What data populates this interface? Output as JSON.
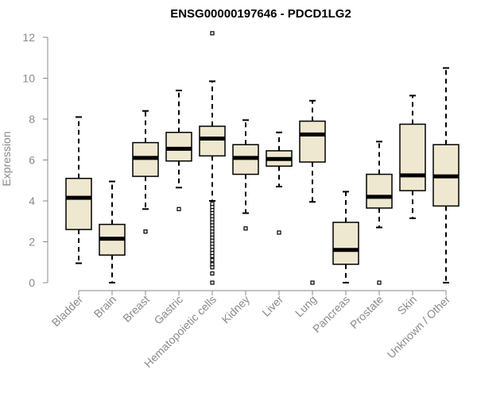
{
  "chart_data": {
    "type": "boxplot",
    "title": "ENSG00000197646 - PDCD1LG2",
    "xlabel": "",
    "ylabel": "Expression",
    "ylim": [
      0,
      12
    ],
    "yticks": [
      0,
      2,
      4,
      6,
      8,
      10,
      12
    ],
    "colors": {
      "box_fill": "#efe8d0",
      "axis": "#8a8a8a",
      "median": "#000000"
    },
    "categories": [
      "Bladder",
      "Brain",
      "Breast",
      "Gastric",
      "Hematopoietic cells",
      "Kidney",
      "Liver",
      "Lung",
      "Pancreas",
      "Prostate",
      "Skin",
      "Unknown / Other"
    ],
    "boxes": [
      {
        "name": "Bladder",
        "whisker_low": 0.95,
        "q1": 2.6,
        "median": 4.15,
        "q3": 5.1,
        "whisker_high": 8.1,
        "outliers": []
      },
      {
        "name": "Brain",
        "whisker_low": 0.0,
        "q1": 1.35,
        "median": 2.15,
        "q3": 2.85,
        "whisker_high": 4.95,
        "outliers": []
      },
      {
        "name": "Breast",
        "whisker_low": 3.6,
        "q1": 5.2,
        "median": 6.1,
        "q3": 6.85,
        "whisker_high": 8.4,
        "outliers": [
          2.5
        ]
      },
      {
        "name": "Gastric",
        "whisker_low": 4.65,
        "q1": 5.95,
        "median": 6.55,
        "q3": 7.35,
        "whisker_high": 9.4,
        "outliers": [
          3.6
        ]
      },
      {
        "name": "Hematopoietic cells",
        "whisker_low": 4.0,
        "q1": 6.2,
        "median": 7.05,
        "q3": 7.65,
        "whisker_high": 9.85,
        "outliers": [
          12.2,
          3.85,
          3.7,
          3.55,
          3.4,
          3.25,
          3.1,
          2.95,
          2.8,
          2.65,
          2.5,
          2.35,
          2.2,
          2.05,
          1.9,
          1.75,
          1.6,
          1.45,
          1.3,
          1.1,
          0.9,
          0.75,
          0.45,
          0.0
        ]
      },
      {
        "name": "Kidney",
        "whisker_low": 3.4,
        "q1": 5.3,
        "median": 6.1,
        "q3": 6.75,
        "whisker_high": 7.95,
        "outliers": [
          2.65
        ]
      },
      {
        "name": "Liver",
        "whisker_low": 4.7,
        "q1": 5.7,
        "median": 6.05,
        "q3": 6.45,
        "whisker_high": 7.35,
        "outliers": [
          2.45
        ]
      },
      {
        "name": "Lung",
        "whisker_low": 3.95,
        "q1": 5.9,
        "median": 7.25,
        "q3": 7.9,
        "whisker_high": 8.9,
        "outliers": [
          0.0
        ]
      },
      {
        "name": "Pancreas",
        "whisker_low": 0.0,
        "q1": 0.9,
        "median": 1.6,
        "q3": 2.95,
        "whisker_high": 4.45,
        "outliers": []
      },
      {
        "name": "Prostate",
        "whisker_low": 2.7,
        "q1": 3.65,
        "median": 4.2,
        "q3": 5.3,
        "whisker_high": 6.9,
        "outliers": [
          0.0
        ]
      },
      {
        "name": "Skin",
        "whisker_low": 3.15,
        "q1": 4.5,
        "median": 5.25,
        "q3": 7.75,
        "whisker_high": 9.15,
        "outliers": []
      },
      {
        "name": "Unknown / Other",
        "whisker_low": 0.0,
        "q1": 3.75,
        "median": 5.2,
        "q3": 6.75,
        "whisker_high": 10.5,
        "outliers": []
      }
    ]
  }
}
